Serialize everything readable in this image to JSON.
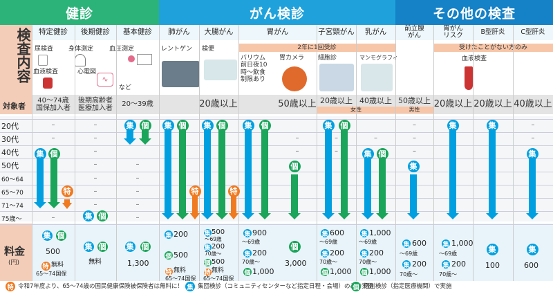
{
  "sections": {
    "kenshin": "健診",
    "gan": "がん検診",
    "other": "その他の検査"
  },
  "side": {
    "content": "検査内容",
    "target": "対象者",
    "price": "料金",
    "price_unit": "(円)"
  },
  "columns": [
    {
      "name": "特定健診"
    },
    {
      "name": "後期健診"
    },
    {
      "name": "基本健診"
    },
    {
      "name": "肺がん"
    },
    {
      "name": "大腸がん"
    },
    {
      "name": "胃がん"
    },
    {
      "name": "子宮頸がん"
    },
    {
      "name": "乳がん"
    },
    {
      "name": "前立腺\nがん"
    },
    {
      "name": "胃がん\nリスク"
    },
    {
      "name": "B型肝炎"
    },
    {
      "name": "C型肝炎"
    }
  ],
  "notes": {
    "gastric_interval": "2年に1回受診",
    "never_tested": "受けたことがない方のみ",
    "female": "女性",
    "male": "男性"
  },
  "items": {
    "urine": "尿検査",
    "body": "身体測定",
    "bp": "血圧測定",
    "blood": "血液検査",
    "ecg": "心電図",
    "etc": "など",
    "xray": "レントゲン",
    "stool": "検便",
    "barium": "バリウム\n前日夜10\n時〜飲食\n制限あり",
    "camera": "胃カメラ",
    "cyto": "細胞診",
    "mammo": "マンモグラフィ",
    "blood2": "血液検査"
  },
  "targets": {
    "c0": "40〜74歳\n国保加入者",
    "c1": "後期高齢者\n医療加入者",
    "c2": "20〜39歳",
    "c3": "20歳以上",
    "c5": "50歳以上",
    "c6": "20歳以上",
    "c7": "40歳以上",
    "c8": "50歳以上",
    "c9": "20歳以上",
    "c10": "20歳以上",
    "c11": "40歳以上"
  },
  "ages": [
    "20代",
    "30代",
    "40代",
    "50代",
    "60〜64",
    "65〜70",
    "71〜74",
    "75歳〜"
  ],
  "badges": {
    "shu": "集",
    "ko": "個",
    "toku": "特"
  },
  "dash": "–",
  "prices": {
    "c0a": "500",
    "c0b": "無料",
    "c0c": "65〜74国保",
    "c1": "無料",
    "c2": "1,300",
    "c3a": "200",
    "c3b": "500",
    "c3c": "無料",
    "c3d": "65〜74国保",
    "c4a": "500",
    "c4a2": "〜69歳",
    "c4b": "200",
    "c4b2": "70歳〜",
    "c4c": "500",
    "c4d": "無料",
    "c4e": "65〜74国保",
    "c5a": "900",
    "c5a2": "〜69歳",
    "c5b": "200",
    "c5b2": "70歳〜",
    "c5c": "1,000",
    "c5d": "3,000",
    "c6a": "600",
    "c6a2": "〜69歳",
    "c6b": "200",
    "c6b2": "70歳〜",
    "c6c": "1,000",
    "c7a": "1,000",
    "c7a2": "〜69歳",
    "c7b": "200",
    "c7b2": "70歳〜",
    "c7c": "1,000",
    "c8a": "600",
    "c8a2": "〜69歳",
    "c8b": "200",
    "c8b2": "70歳〜",
    "c9a": "1,000",
    "c9a2": "〜69歳",
    "c9b": "200",
    "c9b2": "70歳〜",
    "c10": "100",
    "c11": "600"
  },
  "footer": {
    "toku": "令和7年度より、65〜74歳の国民健康保険被保険者は無料に！",
    "shu": "集団検診（コミュニティセンターなど指定日程・会場）のみで実施",
    "ko": "個別検診（指定医療機関）で実施"
  },
  "colors": {
    "kenshin": "#2cb37a",
    "gan": "#1fa2dc",
    "other": "#1581c6",
    "blue": "#00a0e0",
    "green": "#1aa55a",
    "orange": "#f07a20",
    "note": "#f7c6a8"
  }
}
